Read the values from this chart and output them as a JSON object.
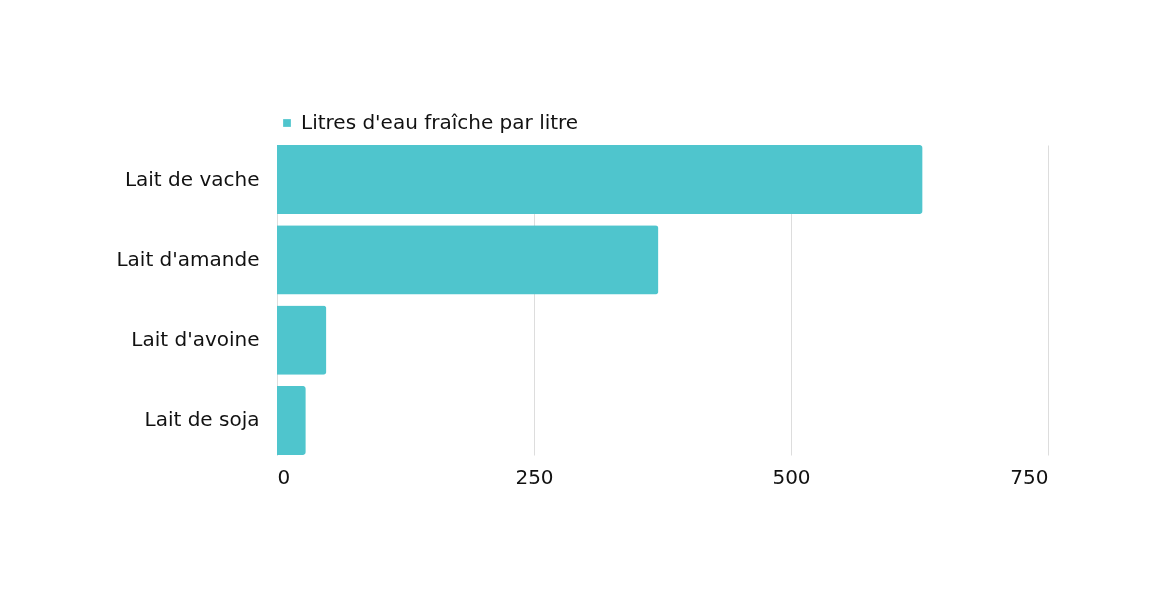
{
  "chart_data": {
    "type": "bar",
    "orientation": "horizontal",
    "categories": [
      "Lait de vache",
      "Lait d'amande",
      "Lait d'avoine",
      "Lait de soja"
    ],
    "series": [
      {
        "name": "Litres d'eau fraîche par litre",
        "color": "#4fc5cd",
        "values": [
          628,
          371,
          48,
          28
        ]
      }
    ],
    "xlim": [
      0,
      750
    ],
    "xticks": [
      0,
      250,
      500,
      750
    ],
    "grid": "x",
    "legend": "top"
  }
}
